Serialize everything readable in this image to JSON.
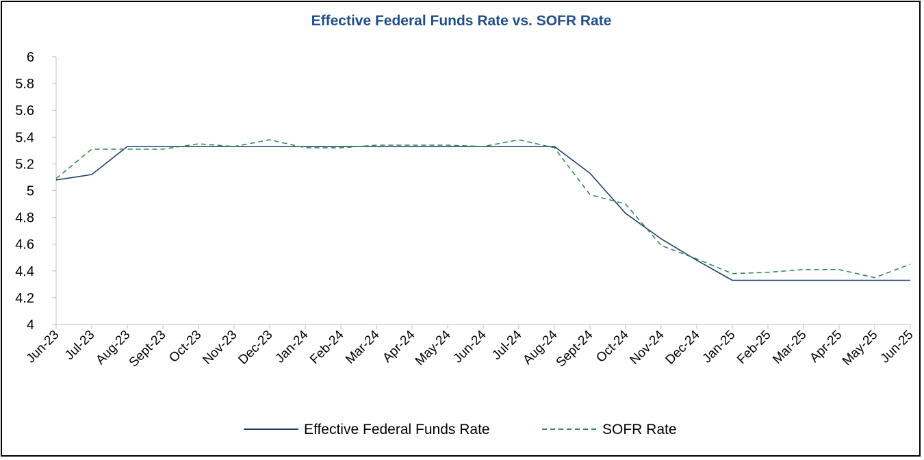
{
  "colors": {
    "title": "#1f4e8c",
    "effr": "#1f3c6e",
    "sofr": "#2e8b4f",
    "axis": "#bfbfbf"
  },
  "chart_data": {
    "type": "line",
    "title": "Effective Federal Funds Rate vs. SOFR Rate",
    "xlabel": "",
    "ylabel": "",
    "ylim": [
      4,
      6
    ],
    "yticks": [
      "4",
      "4.2",
      "4.4",
      "4.6",
      "4.8",
      "5",
      "5.2",
      "5.4",
      "5.6",
      "5.8",
      "6"
    ],
    "grid": false,
    "legend_position": "bottom",
    "categories": [
      "Jun-23",
      "Jul-23",
      "Aug-23",
      "Sept-23",
      "Oct-23",
      "Nov-23",
      "Dec-23",
      "Jan-24",
      "Feb-24",
      "Mar-24",
      "Apr-24",
      "May-24",
      "Jun-24",
      "Jul-24",
      "Aug-24",
      "Sept-24",
      "Oct-24",
      "Nov-24",
      "Dec-24",
      "Jan-25",
      "Feb-25",
      "Mar-25",
      "Apr-25",
      "May-25",
      "Jun-25"
    ],
    "series": [
      {
        "name": "Effective Federal Funds Rate",
        "style": "solid",
        "values": [
          5.08,
          5.12,
          5.33,
          5.33,
          5.33,
          5.33,
          5.33,
          5.33,
          5.33,
          5.33,
          5.33,
          5.33,
          5.33,
          5.33,
          5.33,
          5.13,
          4.83,
          4.64,
          4.48,
          4.33,
          4.33,
          4.33,
          4.33,
          4.33,
          4.33
        ]
      },
      {
        "name": "SOFR Rate",
        "style": "dashed",
        "values": [
          5.09,
          5.31,
          5.31,
          5.31,
          5.35,
          5.33,
          5.38,
          5.32,
          5.32,
          5.34,
          5.34,
          5.34,
          5.33,
          5.38,
          5.32,
          4.97,
          4.9,
          4.59,
          4.49,
          4.38,
          4.39,
          4.41,
          4.41,
          4.35,
          4.45
        ]
      }
    ]
  }
}
